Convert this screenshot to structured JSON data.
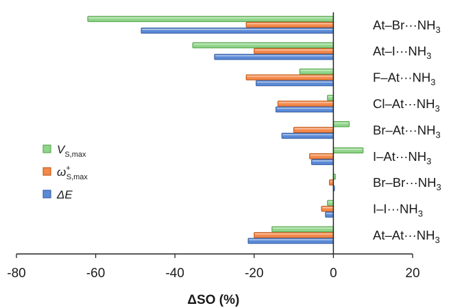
{
  "chart_data": {
    "type": "bar",
    "orientation": "horizontal",
    "categories": [
      {
        "pre": "At–Br···NH",
        "sub": "3"
      },
      {
        "pre": "At–I···NH",
        "sub": "3"
      },
      {
        "pre": "F–At···NH",
        "sub": "3"
      },
      {
        "pre": "Cl–At···NH",
        "sub": "3"
      },
      {
        "pre": "Br–At···NH",
        "sub": "3"
      },
      {
        "pre": "I–At···NH",
        "sub": "3"
      },
      {
        "pre": "Br–Br···NH",
        "sub": "3"
      },
      {
        "pre": "I–I···NH",
        "sub": "3"
      },
      {
        "pre": "At–At···NH",
        "sub": "3"
      }
    ],
    "series": [
      {
        "name": "V",
        "name_sub": "S,max",
        "name_sup": "",
        "color": "#90d58b",
        "stroke": "#5aa84f",
        "values": [
          -62,
          -35.5,
          -8.5,
          -1.5,
          4,
          7.5,
          0.5,
          -1.5,
          -15.5
        ]
      },
      {
        "name": "ω",
        "name_sub": "S,max",
        "name_sup": "+",
        "color": "#f4894a",
        "stroke": "#c45e20",
        "values": [
          -22,
          -20,
          -22,
          -14,
          -10,
          -6,
          -1,
          -3,
          -20
        ]
      },
      {
        "name": "ΔE",
        "name_sub": "",
        "name_sup": "",
        "color": "#5b8ad6",
        "stroke": "#3a62a8",
        "values": [
          -48.5,
          -30,
          -19.5,
          -14.5,
          -13,
          -5.5,
          0,
          -2,
          -21.5
        ]
      }
    ],
    "xlabel": "ΔSO (%)",
    "ylabel": "",
    "xlim": [
      -80,
      20
    ],
    "xticks": [
      "-80",
      "-60",
      "-40",
      "-20",
      "0",
      "20"
    ],
    "legend_position": "left-middle",
    "grid": false
  }
}
